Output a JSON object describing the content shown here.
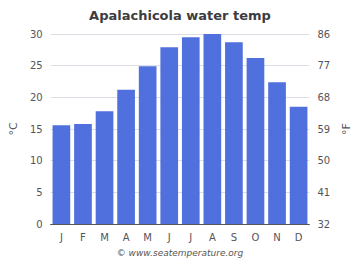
{
  "chart_data": {
    "type": "bar",
    "title": "Apalachicola water temp",
    "categories": [
      "J",
      "F",
      "M",
      "A",
      "M",
      "J",
      "J",
      "A",
      "S",
      "O",
      "N",
      "D"
    ],
    "values": [
      15.6,
      15.8,
      17.8,
      21.2,
      24.9,
      27.9,
      29.5,
      30.0,
      28.7,
      26.2,
      22.4,
      18.5
    ],
    "ylabel": "°C",
    "y2label": "°F",
    "ylim": [
      0,
      30
    ],
    "yticks": [
      0,
      5,
      10,
      15,
      20,
      25,
      30
    ],
    "y2lim": [
      32,
      86
    ],
    "y2ticks": [
      32,
      41,
      50,
      59,
      68,
      77,
      86
    ],
    "annotations": [
      "© www.seatemperature.org"
    ],
    "grid": true
  }
}
